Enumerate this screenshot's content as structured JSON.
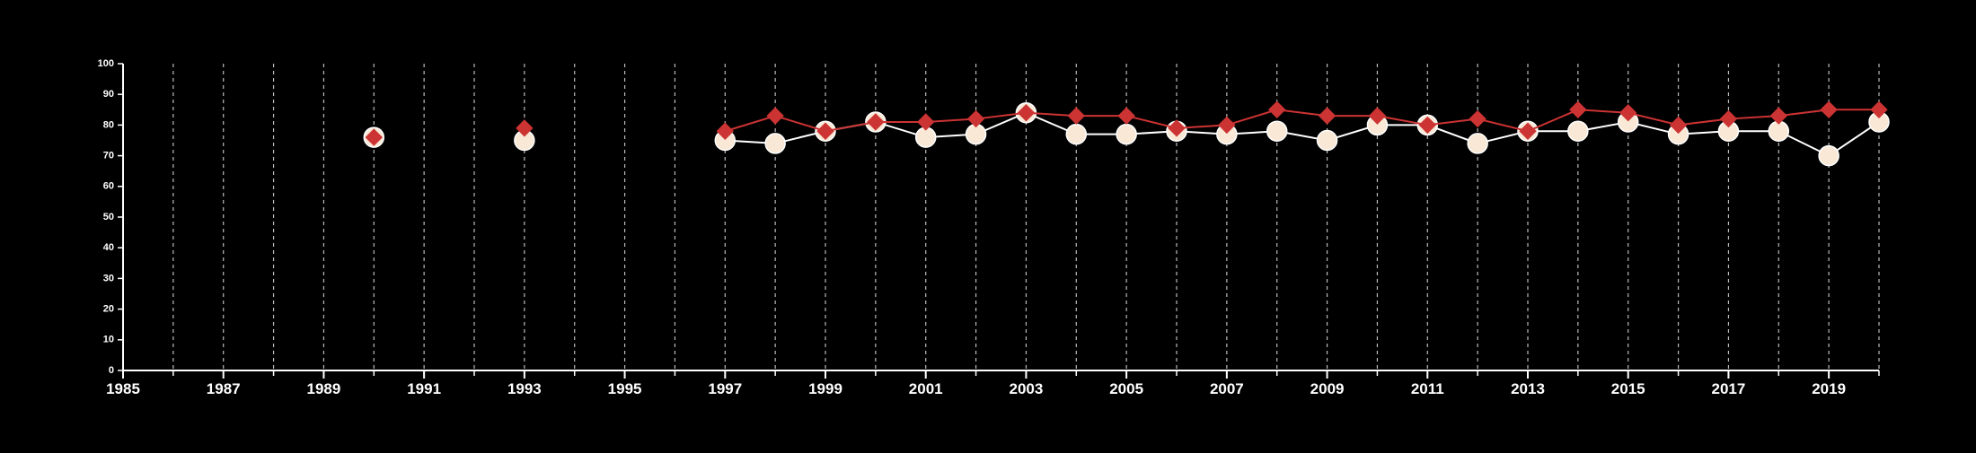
{
  "chart_data": {
    "type": "line",
    "title": "",
    "xlabel": "",
    "ylabel": "",
    "xlim": [
      1985,
      2020
    ],
    "ylim": [
      0,
      100
    ],
    "yticks": [
      "0",
      "10",
      "20",
      "30",
      "40",
      "50",
      "60",
      "70",
      "80",
      "90",
      "100"
    ],
    "xticks": [
      "1985",
      "1987",
      "1989",
      "1991",
      "1993",
      "1995",
      "1997",
      "1999",
      "2001",
      "2003",
      "2005",
      "2007",
      "2009",
      "2011",
      "2013",
      "2015",
      "2017",
      "2019"
    ],
    "grid": "vertical dashed at each year",
    "legend": "none",
    "series": [
      {
        "marker": "circle",
        "color": "#ffffff",
        "fill": "#f8e8d5",
        "x": [
          1990,
          1993,
          1997,
          1998,
          1999,
          2000,
          2001,
          2002,
          2003,
          2004,
          2005,
          2006,
          2007,
          2008,
          2009,
          2010,
          2011,
          2012,
          2013,
          2014,
          2015,
          2016,
          2017,
          2018,
          2019,
          2020
        ],
        "values": [
          76,
          75,
          75,
          74,
          78,
          81,
          76,
          77,
          84,
          77,
          77,
          78,
          77,
          78,
          75,
          80,
          80,
          74,
          78,
          78,
          81,
          77,
          78,
          78,
          70,
          81
        ]
      },
      {
        "marker": "diamond",
        "color": "#cc3333",
        "fill": "#cc3333",
        "x": [
          1990,
          1993,
          1997,
          1998,
          1999,
          2000,
          2001,
          2002,
          2003,
          2004,
          2005,
          2006,
          2007,
          2008,
          2009,
          2010,
          2011,
          2012,
          2013,
          2014,
          2015,
          2016,
          2017,
          2018,
          2019,
          2020
        ],
        "values": [
          76,
          79,
          78,
          83,
          78,
          81,
          81,
          82,
          84,
          83,
          83,
          79,
          80,
          85,
          83,
          83,
          80,
          82,
          78,
          85,
          84,
          80,
          82,
          83,
          85,
          85
        ]
      }
    ]
  }
}
